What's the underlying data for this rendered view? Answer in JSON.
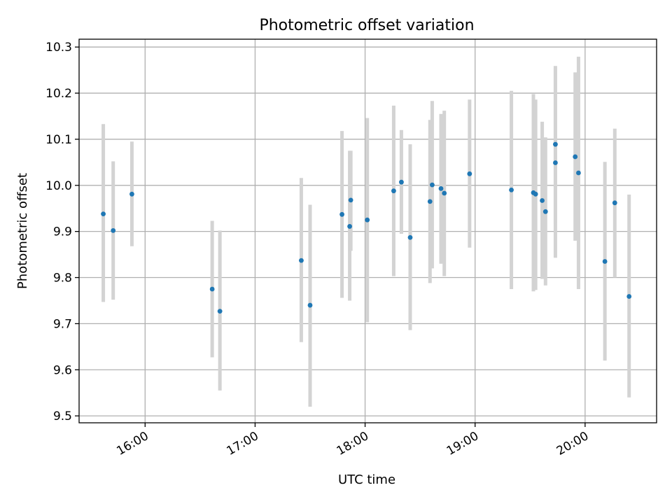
{
  "chart_data": {
    "type": "scatter",
    "title": "Photometric offset variation",
    "xlabel": "UTC time",
    "ylabel": "Photometric offset",
    "grid": true,
    "x_unit": "hours",
    "xlim": [
      15.4,
      20.65
    ],
    "ylim": [
      9.485,
      10.317
    ],
    "x_ticks": [
      {
        "value": 16,
        "label": "16:00"
      },
      {
        "value": 17,
        "label": "17:00"
      },
      {
        "value": 18,
        "label": "18:00"
      },
      {
        "value": 19,
        "label": "19:00"
      },
      {
        "value": 20,
        "label": "20:00"
      }
    ],
    "y_ticks": [
      {
        "value": 9.5,
        "label": "9.5"
      },
      {
        "value": 9.6,
        "label": "9.6"
      },
      {
        "value": 9.7,
        "label": "9.7"
      },
      {
        "value": 9.8,
        "label": "9.8"
      },
      {
        "value": 9.9,
        "label": "9.9"
      },
      {
        "value": 10.0,
        "label": "10.0"
      },
      {
        "value": 10.1,
        "label": "10.1"
      },
      {
        "value": 10.2,
        "label": "10.2"
      },
      {
        "value": 10.3,
        "label": "10.3"
      }
    ],
    "series": [
      {
        "name": "offset",
        "marker_color": "#1f77b4",
        "errorbar_color": "#d3d3d3",
        "points": [
          {
            "x": 15.62,
            "y": 9.938,
            "low": 9.747,
            "high": 10.133
          },
          {
            "x": 15.71,
            "y": 9.902,
            "low": 9.752,
            "high": 10.052
          },
          {
            "x": 15.88,
            "y": 9.981,
            "low": 9.868,
            "high": 10.095
          },
          {
            "x": 16.61,
            "y": 9.775,
            "low": 9.627,
            "high": 9.923
          },
          {
            "x": 16.68,
            "y": 9.727,
            "low": 9.555,
            "high": 9.902
          },
          {
            "x": 17.42,
            "y": 9.837,
            "low": 9.66,
            "high": 10.016
          },
          {
            "x": 17.5,
            "y": 9.74,
            "low": 9.52,
            "high": 9.958
          },
          {
            "x": 17.79,
            "y": 9.937,
            "low": 9.756,
            "high": 10.118
          },
          {
            "x": 17.86,
            "y": 9.911,
            "low": 9.75,
            "high": 10.075
          },
          {
            "x": 17.87,
            "y": 9.968,
            "low": 9.858,
            "high": 10.075
          },
          {
            "x": 18.02,
            "y": 9.925,
            "low": 9.703,
            "high": 10.146
          },
          {
            "x": 18.26,
            "y": 9.988,
            "low": 9.803,
            "high": 10.173
          },
          {
            "x": 18.33,
            "y": 10.007,
            "low": 9.895,
            "high": 10.12
          },
          {
            "x": 18.41,
            "y": 9.887,
            "low": 9.686,
            "high": 10.089
          },
          {
            "x": 18.59,
            "y": 9.965,
            "low": 9.788,
            "high": 10.142
          },
          {
            "x": 18.61,
            "y": 10.001,
            "low": 9.82,
            "high": 10.183
          },
          {
            "x": 18.69,
            "y": 9.993,
            "low": 9.83,
            "high": 10.155
          },
          {
            "x": 18.72,
            "y": 9.983,
            "low": 9.803,
            "high": 10.162
          },
          {
            "x": 18.95,
            "y": 10.025,
            "low": 9.865,
            "high": 10.186
          },
          {
            "x": 19.33,
            "y": 9.99,
            "low": 9.775,
            "high": 10.205
          },
          {
            "x": 19.53,
            "y": 9.984,
            "low": 9.77,
            "high": 10.198
          },
          {
            "x": 19.55,
            "y": 9.981,
            "low": 9.773,
            "high": 10.186
          },
          {
            "x": 19.61,
            "y": 9.967,
            "low": 9.797,
            "high": 10.138
          },
          {
            "x": 19.64,
            "y": 9.943,
            "low": 9.783,
            "high": 10.104
          },
          {
            "x": 19.73,
            "y": 10.049,
            "low": 9.843,
            "high": 10.259
          },
          {
            "x": 19.73,
            "y": 10.089,
            "low": 9.918,
            "high": 10.255
          },
          {
            "x": 19.91,
            "y": 10.062,
            "low": 9.88,
            "high": 10.245
          },
          {
            "x": 19.94,
            "y": 10.027,
            "low": 9.775,
            "high": 10.279
          },
          {
            "x": 20.18,
            "y": 9.835,
            "low": 9.62,
            "high": 10.051
          },
          {
            "x": 20.27,
            "y": 9.962,
            "low": 9.8,
            "high": 10.123
          },
          {
            "x": 20.4,
            "y": 9.759,
            "low": 9.54,
            "high": 9.98
          }
        ]
      }
    ]
  }
}
